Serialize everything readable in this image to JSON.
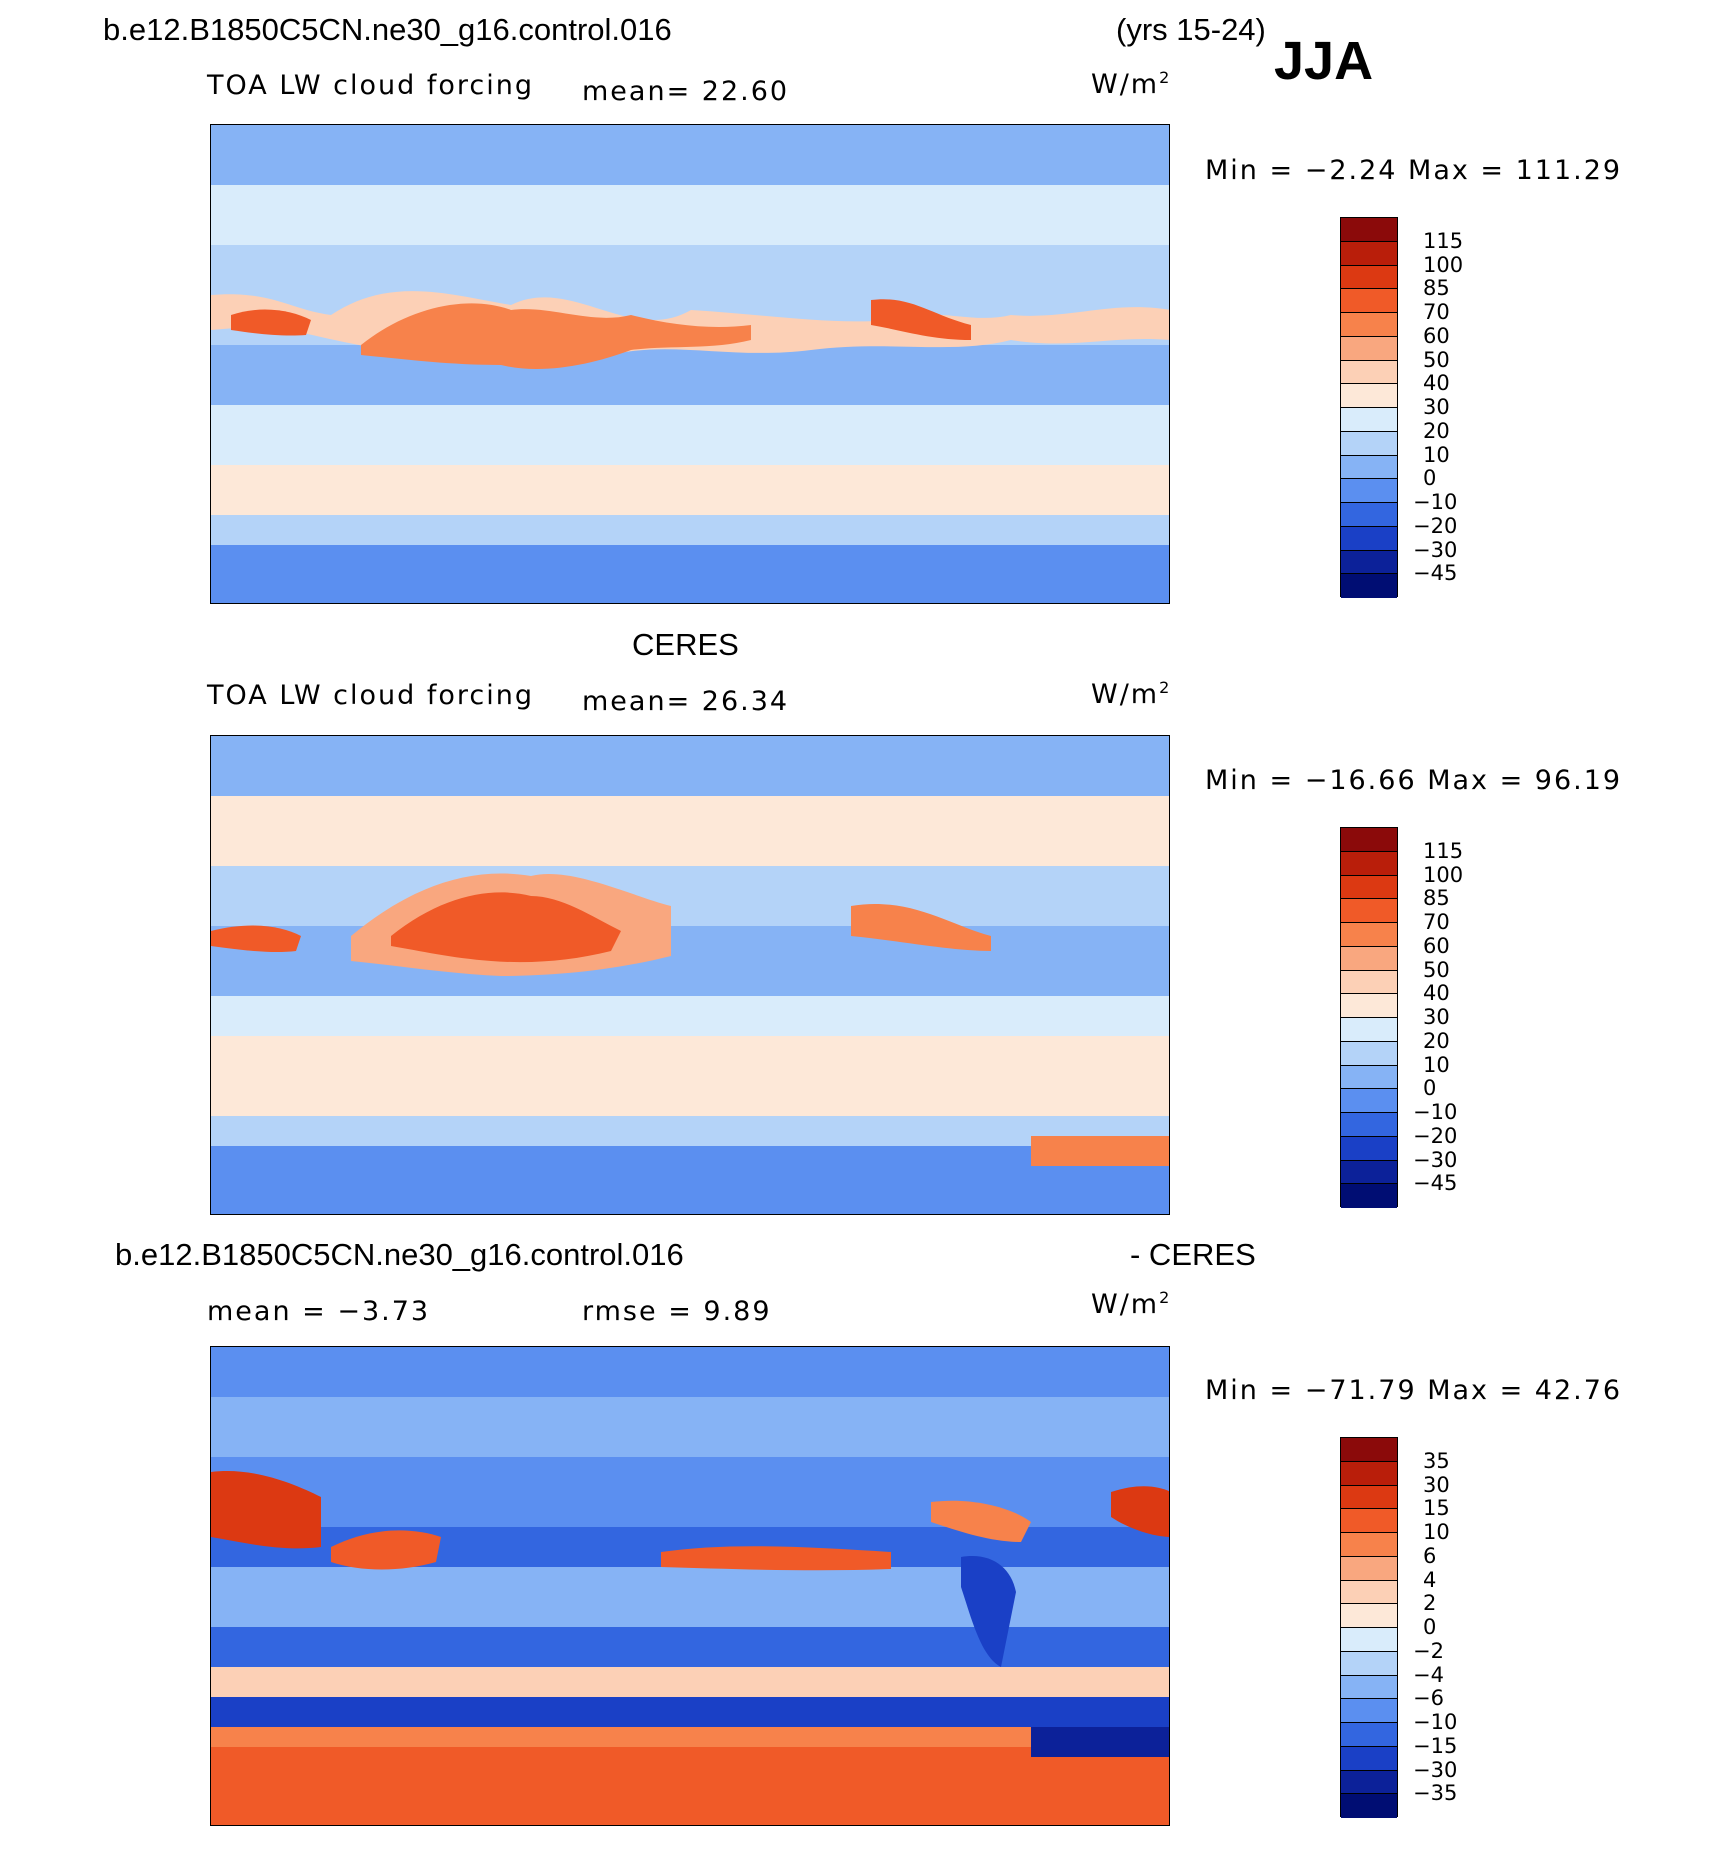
{
  "header": {
    "case_name": "b.e12.B1850C5CN.ne30_g16.control.016",
    "years": "(yrs 15-24)",
    "season": "JJA"
  },
  "panels": [
    {
      "title": "",
      "left_label": "TOA LW cloud forcing",
      "mid_label": "mean=  22.60",
      "units": "W/m",
      "units_sup": "2",
      "stats": "Min =  −2.24 Max = 111.29",
      "colorbar": {
        "labels": [
          "115",
          "100",
          "85",
          "70",
          "60",
          "50",
          "40",
          "30",
          "20",
          "10",
          "0",
          "−10",
          "−20",
          "−30",
          "−45"
        ],
        "colors": [
          "#8b0a0a",
          "#b91e0a",
          "#dc3912",
          "#f05a28",
          "#f7824b",
          "#f9a77f",
          "#fcd0b6",
          "#fde8d8",
          "#d9ecfb",
          "#b4d3f8",
          "#86b3f5",
          "#5b8ff0",
          "#3366e0",
          "#1a40c6",
          "#0c2199",
          "#000d73"
        ]
      }
    },
    {
      "title": "CERES",
      "left_label": "TOA LW cloud forcing",
      "mid_label": "mean=  26.34",
      "units": "W/m",
      "units_sup": "2",
      "stats": "Min = −16.66 Max =  96.19",
      "colorbar": {
        "labels": [
          "115",
          "100",
          "85",
          "70",
          "60",
          "50",
          "40",
          "30",
          "20",
          "10",
          "0",
          "−10",
          "−20",
          "−30",
          "−45"
        ],
        "colors": [
          "#8b0a0a",
          "#b91e0a",
          "#dc3912",
          "#f05a28",
          "#f7824b",
          "#f9a77f",
          "#fcd0b6",
          "#fde8d8",
          "#d9ecfb",
          "#b4d3f8",
          "#86b3f5",
          "#5b8ff0",
          "#3366e0",
          "#1a40c6",
          "#0c2199",
          "#000d73"
        ]
      }
    },
    {
      "title": "b.e12.B1850C5CN.ne30_g16.control.016",
      "title_right": "- CERES",
      "left_label": "mean =  −3.73",
      "mid_label": "rmse =   9.89",
      "units": "W/m",
      "units_sup": "2",
      "stats": "Min = −71.79 Max =  42.76",
      "colorbar": {
        "labels": [
          "35",
          "30",
          "15",
          "10",
          "6",
          "4",
          "2",
          "0",
          "−2",
          "−4",
          "−6",
          "−10",
          "−15",
          "−30",
          "−35"
        ],
        "colors": [
          "#8b0a0a",
          "#b91e0a",
          "#dc3912",
          "#f05a28",
          "#f7824b",
          "#f9a77f",
          "#fcd0b6",
          "#fde8d8",
          "#d9ecfb",
          "#b4d3f8",
          "#86b3f5",
          "#5b8ff0",
          "#3366e0",
          "#1a40c6",
          "#0c2199",
          "#000d73"
        ]
      }
    }
  ]
}
